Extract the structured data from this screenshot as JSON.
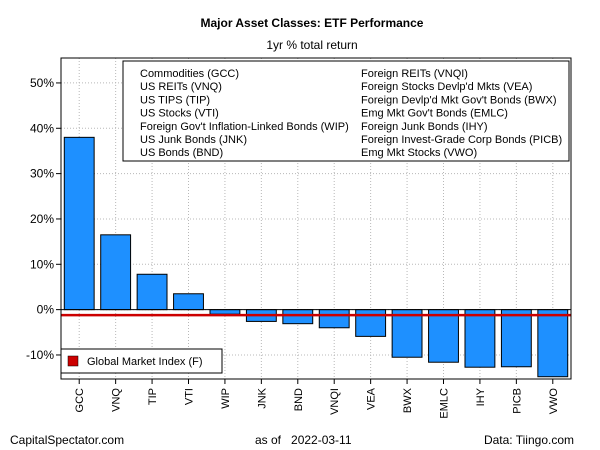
{
  "chart_data": {
    "type": "bar",
    "title": "Major Asset Classes: ETF Performance",
    "subtitle": "1yr % total return",
    "categories": [
      "GCC",
      "VNQ",
      "TIP",
      "VTI",
      "WIP",
      "JNK",
      "BND",
      "VNQI",
      "VEA",
      "BWX",
      "EMLC",
      "IHY",
      "PICB",
      "VWO"
    ],
    "values": [
      38.0,
      16.5,
      7.8,
      3.5,
      -1.0,
      -2.6,
      -3.1,
      -4.0,
      -5.9,
      -10.5,
      -11.6,
      -12.7,
      -12.6,
      -14.8
    ],
    "ylim": [
      -15.3,
      55.5
    ],
    "yticks": [
      -10,
      0,
      10,
      20,
      30,
      40,
      50
    ],
    "ytick_labels": [
      "-10%",
      "0%",
      "10%",
      "20%",
      "30%",
      "40%",
      "50%"
    ],
    "xlabel": "",
    "ylabel": "",
    "grid": true,
    "bar_color": "#1E90FF",
    "reference_line": {
      "label": "Global Market Index (F)",
      "value": -1.2,
      "color": "#cc0000"
    },
    "legend_entries": [
      "Commodities (GCC)",
      "US REITs (VNQ)",
      "US TIPS (TIP)",
      "US Stocks (VTI)",
      "Foreign Gov't Inflation-Linked Bonds (WIP)",
      "US Junk Bonds (JNK)",
      "US Bonds (BND)",
      "Foreign REITs (VNQI)",
      "Foreign Stocks Devlp'd Mkts (VEA)",
      "Foreign Devlp'd Mkt Gov't Bonds (BWX)",
      "Emg Mkt Gov't Bonds (EMLC)",
      "Foreign Junk Bonds (IHY)",
      "Foreign Invest-Grade Corp Bonds (PICB)",
      "Emg Mkt Stocks (VWO)"
    ],
    "legend_placement": "top-center"
  },
  "footer": {
    "left": "CapitalSpectator.com",
    "center": "as of   2022-03-11",
    "right": "Data: Tiingo.com"
  }
}
